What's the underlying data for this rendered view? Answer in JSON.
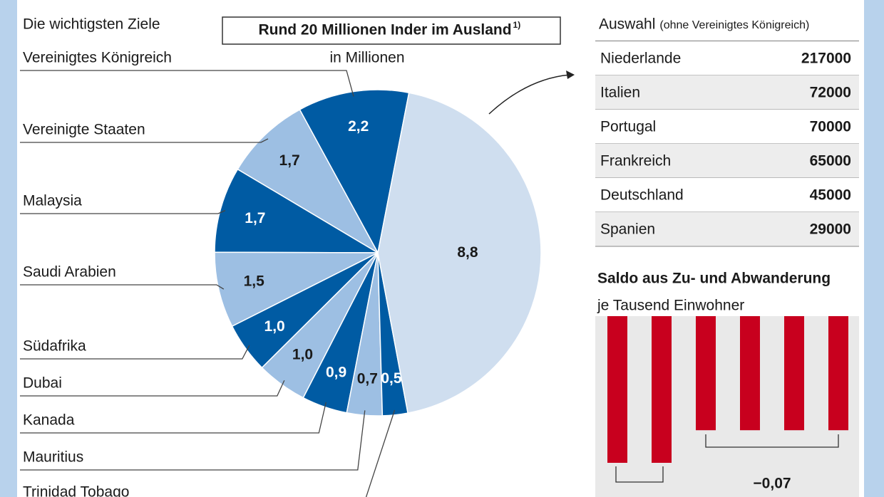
{
  "chart_data": [
    {
      "type": "pie",
      "title": "Rund 20 Millionen Inder im Ausland",
      "title_note": "1)",
      "subtitle": "Die wichtigsten Ziele",
      "unit": "in Millionen",
      "categories": [
        "Vereinigtes Königreich",
        "Vereinigte Staaten",
        "Malaysia",
        "Saudi Arabien",
        "Südafrika",
        "Dubai",
        "Kanada",
        "Mauritius",
        "Trinidad Tobago",
        null
      ],
      "values": [
        2.2,
        1.7,
        1.7,
        1.5,
        1.0,
        1.0,
        0.9,
        0.7,
        0.5,
        8.8
      ],
      "value_labels": [
        "2,2",
        "1,7",
        "1,7",
        "1,5",
        "1,0",
        "1,0",
        "0,9",
        "0,7",
        "0,5",
        "8,8"
      ],
      "colors": [
        "#005ba3",
        "#9dbfe3",
        "#005ba3",
        "#9dbfe3",
        "#005ba3",
        "#9dbfe3",
        "#005ba3",
        "#9dbfe3",
        "#005ba3",
        "#cfdeef"
      ]
    },
    {
      "type": "bar",
      "title": "Saldo aus Zu- und Abwanderung",
      "subtitle": "je Tausend Einwohner",
      "values": [
        -0.09,
        -0.09,
        -0.07,
        -0.07,
        -0.07,
        -0.07
      ],
      "color": "#c8001e",
      "ylim": [
        0,
        -0.09
      ],
      "annotation": "−0,07"
    }
  ],
  "table": {
    "caption": "Auswahl",
    "caption_note": "(ohne Vereinigtes Königreich)",
    "rows": [
      [
        "Niederlande",
        "217000"
      ],
      [
        "Italien",
        "72000"
      ],
      [
        "Portugal",
        "70000"
      ],
      [
        "Frankreich",
        "65000"
      ],
      [
        "Deutschland",
        "45000"
      ],
      [
        "Spanien",
        "29000"
      ]
    ]
  }
}
